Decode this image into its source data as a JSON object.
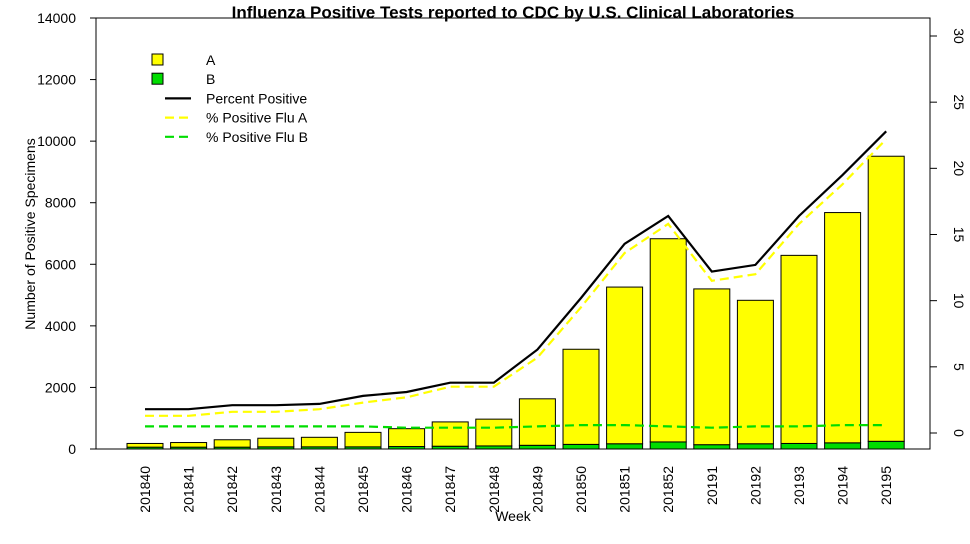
{
  "chart_data": {
    "type": "bar",
    "title": "Influenza Positive Tests reported to CDC by U.S. Clinical Laboratories",
    "xlabel": "Week",
    "ylabel": "Number of Positive Specimens",
    "ylim": [
      0,
      14000
    ],
    "y_ticks": [
      "0",
      "2000",
      "4000",
      "6000",
      "8000",
      "10000",
      "12000",
      "14000"
    ],
    "y2lim": [
      0,
      30
    ],
    "y2_ticks": [
      "0",
      "5",
      "10",
      "15",
      "20",
      "25",
      "30"
    ],
    "categories": [
      "201840",
      "201841",
      "201842",
      "201843",
      "201844",
      "201845",
      "201846",
      "201847",
      "201848",
      "201849",
      "201850",
      "201851",
      "201852",
      "20191",
      "20192",
      "20193",
      "20194",
      "20195"
    ],
    "stacked": true,
    "series": [
      {
        "name": "B",
        "color": "#00dd00",
        "axis": "left",
        "values": [
          60,
          60,
          60,
          70,
          70,
          70,
          80,
          90,
          100,
          120,
          150,
          170,
          230,
          140,
          170,
          180,
          200,
          250
        ]
      },
      {
        "name": "A",
        "color": "#ffff00",
        "axis": "left",
        "values": [
          120,
          150,
          240,
          280,
          310,
          470,
          580,
          790,
          870,
          1510,
          3090,
          5090,
          6600,
          5060,
          4660,
          6110,
          7480,
          9260
        ]
      },
      {
        "name": "Percent Positive",
        "color": "#000000",
        "style": "solid",
        "axis": "right",
        "values": [
          1.8,
          1.8,
          2.1,
          2.1,
          2.2,
          2.8,
          3.1,
          3.8,
          3.8,
          6.3,
          10.2,
          14.3,
          16.4,
          12.2,
          12.7,
          16.4,
          19.5,
          22.8
        ]
      },
      {
        "name": "% Positive Flu A",
        "color": "#ffff00",
        "style": "dashed",
        "axis": "right",
        "values": [
          1.3,
          1.3,
          1.6,
          1.6,
          1.8,
          2.3,
          2.7,
          3.5,
          3.5,
          5.7,
          9.5,
          13.6,
          15.8,
          11.5,
          12.0,
          15.8,
          18.8,
          22.2
        ]
      },
      {
        "name": "% Positive Flu B",
        "color": "#00dd00",
        "style": "dashed",
        "axis": "right",
        "values": [
          0.5,
          0.5,
          0.5,
          0.5,
          0.5,
          0.5,
          0.4,
          0.4,
          0.4,
          0.5,
          0.6,
          0.6,
          0.5,
          0.4,
          0.5,
          0.5,
          0.6,
          0.6
        ]
      }
    ],
    "legend": {
      "position": "top-left",
      "entries": [
        {
          "label": "A",
          "kind": "box",
          "color": "#ffff00"
        },
        {
          "label": "B",
          "kind": "box",
          "color": "#00dd00"
        },
        {
          "label": "Percent Positive",
          "kind": "line",
          "color": "#000000",
          "dash": false
        },
        {
          "label": "% Positive Flu A",
          "kind": "line",
          "color": "#ffff00",
          "dash": true
        },
        {
          "label": "% Positive Flu B",
          "kind": "line",
          "color": "#00dd00",
          "dash": true
        }
      ]
    }
  }
}
